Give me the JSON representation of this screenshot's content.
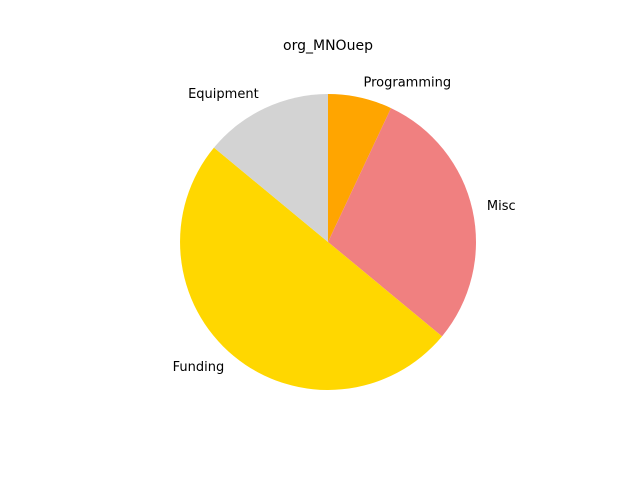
{
  "chart_data": {
    "type": "pie",
    "title": "org_MNOuep",
    "start_angle_deg": 90,
    "direction": "clockwise",
    "slices": [
      {
        "label": "Programming",
        "value": 7,
        "color": "#FFA500"
      },
      {
        "label": "Misc",
        "value": 29,
        "color": "#F08080"
      },
      {
        "label": "Funding",
        "value": 50,
        "color": "#FFD700"
      },
      {
        "label": "Equipment",
        "value": 14,
        "color": "#D3D3D3"
      }
    ]
  }
}
